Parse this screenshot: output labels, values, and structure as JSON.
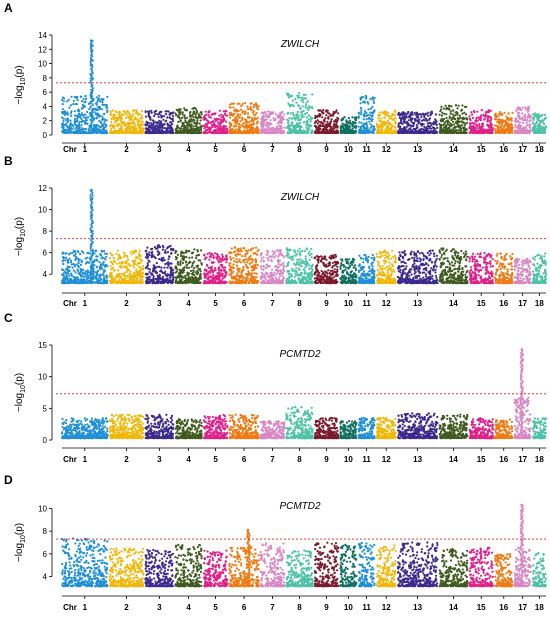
{
  "chr_axis_label": "Chr",
  "chromosome_labels": [
    "1",
    "2",
    "3",
    "4",
    "5",
    "6",
    "7",
    "8",
    "9",
    "10",
    "11",
    "12",
    "13",
    "14",
    "15",
    "16",
    "17",
    "18"
  ],
  "colors": {
    "chromosomes": [
      "#1f8fd6",
      "#f2b705",
      "#3b2a8c",
      "#3f5a1e",
      "#e0218a",
      "#f07a12",
      "#d987c4",
      "#4cc2a6",
      "#7a1a2c",
      "#10705f",
      "#1f8fd6",
      "#f2b705",
      "#3b2a8c",
      "#3f5a1e",
      "#e0218a",
      "#f07a12",
      "#d987c4",
      "#4cc2a6"
    ],
    "threshold_line": "#e02020"
  },
  "chart_data": [
    {
      "type": "scatter",
      "panel": "A",
      "title": "ZWILCH",
      "ylabel": "−log10(p)",
      "ylim": [
        0,
        14
      ],
      "yticks": [
        0,
        2,
        4,
        6,
        8,
        10,
        12,
        14
      ],
      "threshold": 7.3,
      "x_categories": [
        "1",
        "2",
        "3",
        "4",
        "5",
        "6",
        "7",
        "8",
        "9",
        "10",
        "11",
        "12",
        "13",
        "14",
        "15",
        "16",
        "17",
        "18"
      ],
      "series": [
        {
          "values_note_peak": [
            {
              "chr": "1",
              "peak": 13.2
            }
          ]
        }
      ],
      "background_max_by_chr": [
        5.5,
        3.5,
        3.4,
        3.8,
        3.4,
        4.5,
        3.3,
        6.0,
        3.5,
        2.5,
        5.5,
        3.4,
        3.3,
        4.2,
        3.5,
        3.2,
        4.0,
        3.0
      ],
      "peaks": [
        {
          "chr": "1",
          "values": [
            13.2,
            12.5,
            11.8,
            10.5,
            9.8,
            8.5,
            7.9,
            6.2,
            5.9,
            5.5
          ]
        }
      ]
    },
    {
      "type": "scatter",
      "panel": "B",
      "title": "ZWILCH",
      "ylabel": "−log10(p)",
      "ylim": [
        3,
        12
      ],
      "yticks": [
        4,
        6,
        8,
        10,
        12
      ],
      "threshold": 7.3,
      "x_categories": [
        "1",
        "2",
        "3",
        "4",
        "5",
        "6",
        "7",
        "8",
        "9",
        "10",
        "11",
        "12",
        "13",
        "14",
        "15",
        "16",
        "17",
        "18"
      ],
      "background_max_by_chr": [
        6.2,
        6.2,
        6.7,
        6.3,
        6.0,
        6.5,
        6.3,
        6.5,
        5.8,
        5.5,
        5.8,
        6.2,
        6.2,
        6.4,
        6.0,
        6.0,
        5.5,
        6.0
      ],
      "peaks": [
        {
          "chr": "1",
          "values": [
            11.8,
            11.0,
            10.2,
            9.5,
            8.8,
            8.0,
            7.5,
            6.8
          ]
        }
      ]
    },
    {
      "type": "scatter",
      "panel": "C",
      "title": "PCMTD2",
      "ylabel": "−log10(p)",
      "ylim": [
        0,
        15
      ],
      "yticks": [
        0,
        5,
        10,
        15
      ],
      "threshold": 7.3,
      "x_categories": [
        "1",
        "2",
        "3",
        "4",
        "5",
        "6",
        "7",
        "8",
        "9",
        "10",
        "11",
        "12",
        "13",
        "14",
        "15",
        "16",
        "17",
        "18"
      ],
      "background_max_by_chr": [
        3.5,
        4.0,
        4.0,
        3.3,
        4.0,
        4.0,
        3.0,
        5.2,
        3.5,
        3.0,
        3.5,
        3.5,
        4.2,
        4.0,
        3.5,
        3.3,
        14.3,
        3.5
      ],
      "peaks": [
        {
          "chr": "17",
          "values": [
            14.3,
            13.5,
            12.5,
            11.0,
            10.0,
            9.0,
            8.2,
            7.5,
            6.5,
            5.5
          ]
        }
      ]
    },
    {
      "type": "scatter",
      "panel": "D",
      "title": "PCMTD2",
      "ylabel": "−log10(p)",
      "ylim": [
        3,
        11
      ],
      "yticks": [
        4,
        6,
        8,
        10
      ],
      "threshold": 7.3,
      "x_categories": [
        "1",
        "2",
        "3",
        "4",
        "5",
        "6",
        "7",
        "8",
        "9",
        "10",
        "11",
        "12",
        "13",
        "14",
        "15",
        "16",
        "17",
        "18"
      ],
      "background_max_by_chr": [
        7.4,
        6.5,
        6.4,
        6.8,
        6.3,
        8.1,
        7.0,
        6.3,
        7.0,
        6.8,
        7.0,
        6.8,
        7.0,
        6.5,
        6.6,
        6.0,
        10.3,
        6.2
      ],
      "peaks": [
        {
          "chr": "17",
          "values": [
            10.3,
            9.8,
            9.2,
            8.5,
            7.8,
            7.2,
            6.8
          ]
        },
        {
          "chr": "6",
          "values": [
            8.1,
            7.8,
            7.5
          ]
        }
      ]
    }
  ]
}
